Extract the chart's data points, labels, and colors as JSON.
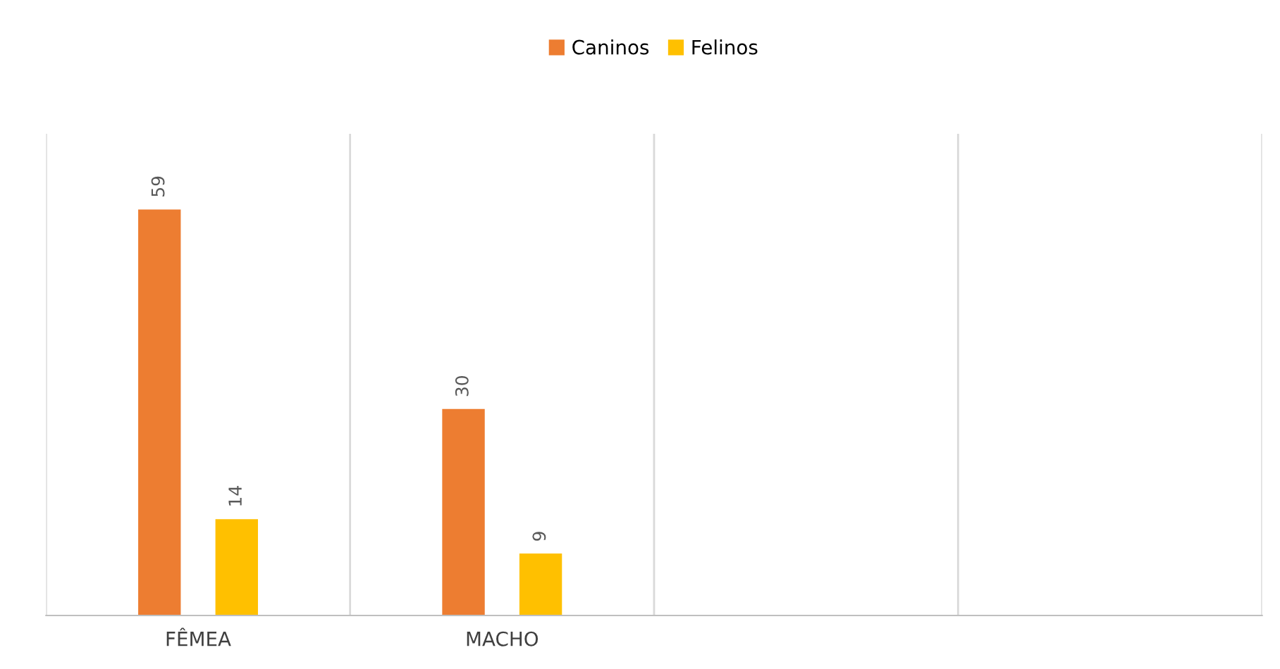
{
  "chart_data": {
    "type": "bar",
    "categories": [
      "FÊMEA",
      "MACHO",
      null,
      null
    ],
    "series": [
      {
        "name": "Caninos",
        "color": "#ed7d31",
        "values": [
          59,
          30,
          null,
          null
        ]
      },
      {
        "name": "Felinos",
        "color": "#ffc000",
        "values": [
          14,
          9,
          null,
          null
        ]
      }
    ],
    "ylim": [
      0,
      70
    ],
    "data_labels": true,
    "grid": "x",
    "legend": "top",
    "tick_labels": "x"
  }
}
